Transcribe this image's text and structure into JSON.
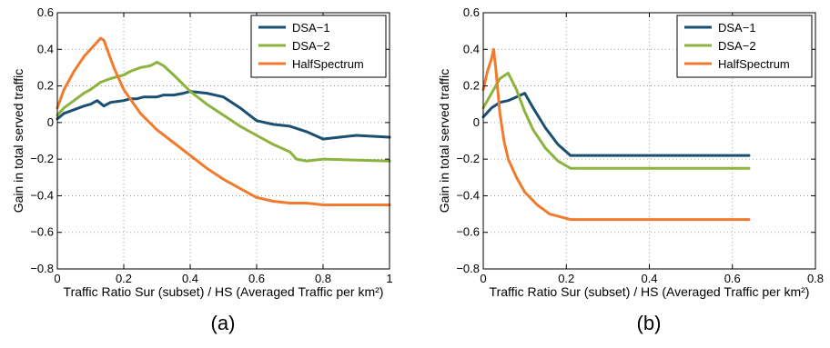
{
  "chart_data": [
    {
      "type": "line",
      "caption": "(a)",
      "xlabel": "Traffic Ratio Sur (subset) / HS (Averaged Traffic per km²)",
      "ylabel": "Gain in total served traffic",
      "xlim": [
        0,
        1
      ],
      "ylim": [
        -0.8,
        0.6
      ],
      "xticks": [
        0,
        0.2,
        0.4,
        0.6,
        0.8,
        1
      ],
      "xtick_labels": [
        "0",
        "0.2",
        "0.4",
        "0.6",
        "0.8",
        "1"
      ],
      "yticks": [
        -0.8,
        -0.6,
        -0.4,
        -0.2,
        0,
        0.2,
        0.4,
        0.6
      ],
      "ytick_labels": [
        "−0.8",
        "−0.6",
        "−0.4",
        "−0.2",
        "0",
        "0.2",
        "0.4",
        "0.6"
      ],
      "grid": true,
      "legend_position": "top-right",
      "series": [
        {
          "name": "DSA−1",
          "color": "#1b4f72",
          "x": [
            0,
            0.02,
            0.05,
            0.08,
            0.1,
            0.12,
            0.14,
            0.16,
            0.2,
            0.22,
            0.24,
            0.26,
            0.3,
            0.32,
            0.35,
            0.38,
            0.4,
            0.45,
            0.5,
            0.55,
            0.6,
            0.65,
            0.7,
            0.75,
            0.8,
            0.85,
            0.9,
            1.0
          ],
          "y": [
            0.02,
            0.05,
            0.07,
            0.09,
            0.1,
            0.12,
            0.09,
            0.11,
            0.12,
            0.13,
            0.13,
            0.14,
            0.14,
            0.15,
            0.15,
            0.16,
            0.17,
            0.16,
            0.14,
            0.08,
            0.01,
            -0.01,
            -0.02,
            -0.05,
            -0.09,
            -0.08,
            -0.07,
            -0.08
          ]
        },
        {
          "name": "DSA−2",
          "color": "#8db33f",
          "x": [
            0,
            0.02,
            0.05,
            0.08,
            0.1,
            0.13,
            0.16,
            0.2,
            0.22,
            0.25,
            0.28,
            0.3,
            0.32,
            0.35,
            0.4,
            0.45,
            0.5,
            0.55,
            0.6,
            0.65,
            0.7,
            0.72,
            0.75,
            0.8,
            1.0
          ],
          "y": [
            0.04,
            0.08,
            0.12,
            0.16,
            0.18,
            0.22,
            0.24,
            0.26,
            0.28,
            0.3,
            0.31,
            0.33,
            0.31,
            0.26,
            0.17,
            0.1,
            0.04,
            -0.02,
            -0.07,
            -0.12,
            -0.16,
            -0.2,
            -0.21,
            -0.2,
            -0.21
          ]
        },
        {
          "name": "HalfSpectrum",
          "color": "#f07b2e",
          "x": [
            0,
            0.02,
            0.05,
            0.08,
            0.1,
            0.12,
            0.13,
            0.14,
            0.15,
            0.17,
            0.2,
            0.25,
            0.3,
            0.35,
            0.4,
            0.45,
            0.5,
            0.55,
            0.6,
            0.65,
            0.7,
            0.75,
            0.8,
            1.0
          ],
          "y": [
            0.08,
            0.18,
            0.28,
            0.36,
            0.4,
            0.44,
            0.46,
            0.45,
            0.4,
            0.3,
            0.18,
            0.05,
            -0.04,
            -0.11,
            -0.18,
            -0.25,
            -0.31,
            -0.36,
            -0.41,
            -0.43,
            -0.44,
            -0.44,
            -0.45,
            -0.45
          ]
        }
      ]
    },
    {
      "type": "line",
      "caption": "(b)",
      "xlabel": "Traffic Ratio Sur (subset) / HS (Averaged Traffic per km²)",
      "ylabel": "Gain in total served traffic",
      "xlim": [
        0,
        0.8
      ],
      "ylim": [
        -0.8,
        0.6
      ],
      "xticks": [
        0,
        0.2,
        0.4,
        0.6,
        0.8
      ],
      "xtick_labels": [
        "0",
        "0.2",
        "0.4",
        "0.6",
        "0.8"
      ],
      "yticks": [
        -0.8,
        -0.6,
        -0.4,
        -0.2,
        0,
        0.2,
        0.4,
        0.6
      ],
      "ytick_labels": [
        "−0.8",
        "−0.6",
        "−0.4",
        "−0.2",
        "0",
        "0.2",
        "0.4",
        "0.6"
      ],
      "grid": true,
      "legend_position": "top-right",
      "series": [
        {
          "name": "DSA−1",
          "color": "#1b4f72",
          "x": [
            0,
            0.02,
            0.04,
            0.06,
            0.08,
            0.1,
            0.12,
            0.15,
            0.18,
            0.21,
            0.64
          ],
          "y": [
            0.03,
            0.08,
            0.11,
            0.12,
            0.14,
            0.16,
            0.08,
            -0.03,
            -0.12,
            -0.18,
            -0.18
          ]
        },
        {
          "name": "DSA−2",
          "color": "#8db33f",
          "x": [
            0,
            0.02,
            0.04,
            0.06,
            0.08,
            0.1,
            0.12,
            0.15,
            0.18,
            0.21,
            0.64
          ],
          "y": [
            0.08,
            0.16,
            0.24,
            0.27,
            0.18,
            0.06,
            -0.04,
            -0.14,
            -0.21,
            -0.25,
            -0.25
          ]
        },
        {
          "name": "HalfSpectrum",
          "color": "#f07b2e",
          "x": [
            0,
            0.01,
            0.02,
            0.025,
            0.03,
            0.04,
            0.05,
            0.06,
            0.08,
            0.1,
            0.13,
            0.16,
            0.21,
            0.64
          ],
          "y": [
            0.18,
            0.28,
            0.35,
            0.4,
            0.3,
            0.05,
            -0.1,
            -0.2,
            -0.3,
            -0.38,
            -0.45,
            -0.5,
            -0.53,
            -0.53
          ]
        }
      ]
    }
  ]
}
